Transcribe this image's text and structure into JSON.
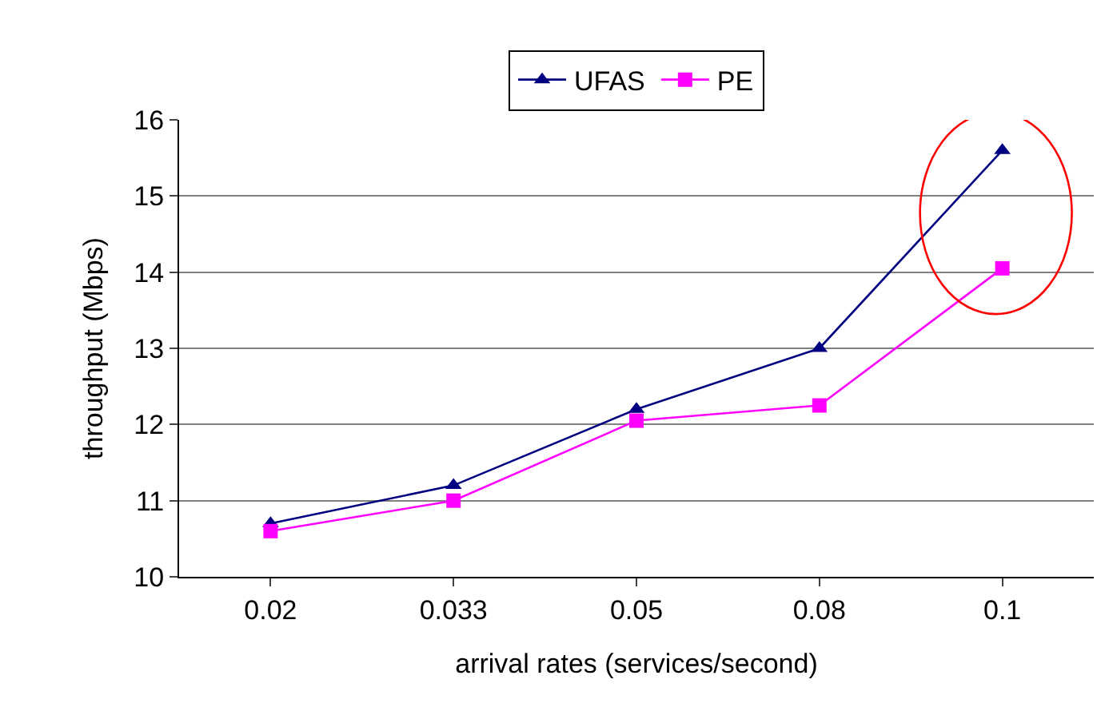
{
  "chart_data": {
    "type": "line",
    "xlabel": "arrival rates (services/second)",
    "ylabel": "throughput (Mbps)",
    "categories": [
      "0.02",
      "0.033",
      "0.05",
      "0.08",
      "0.1"
    ],
    "series": [
      {
        "name": "UFAS",
        "color": "#000080",
        "marker": "triangle",
        "values": [
          10.7,
          11.2,
          12.2,
          13.0,
          15.6
        ]
      },
      {
        "name": "PE",
        "color": "#ff00ff",
        "marker": "square",
        "values": [
          10.6,
          11.0,
          12.05,
          12.25,
          14.05
        ]
      }
    ],
    "ylim": [
      10,
      16
    ],
    "yticks": [
      10,
      11,
      12,
      13,
      14,
      15,
      16
    ],
    "grid": "y",
    "legend": "top",
    "line_style": "solid"
  }
}
